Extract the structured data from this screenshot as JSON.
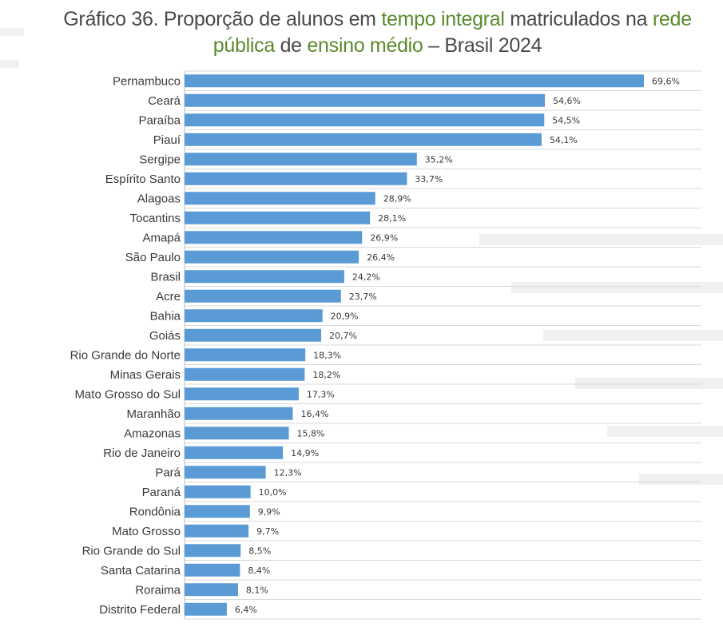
{
  "title": {
    "part1": "Gráfico 36. Proporção de alunos em ",
    "part2": "tempo integral",
    "part3": " matriculados na ",
    "part4": "rede",
    "part5": "pública",
    "part6": " de ",
    "part7": "ensino médio",
    "part8": " – Brasil 2024"
  },
  "colors": {
    "bar": "#5b9bd5",
    "highlight": "#5a8a2c",
    "text": "#4a4a4a"
  },
  "chart_data": {
    "type": "bar",
    "orientation": "horizontal",
    "title": "Gráfico 36. Proporção de alunos em tempo integral matriculados na rede pública de ensino médio – Brasil 2024",
    "xlabel": "",
    "ylabel": "",
    "xlim": [
      0,
      70
    ],
    "grid": true,
    "categories": [
      "Pernambuco",
      "Ceará",
      "Paraíba",
      "Piauí",
      "Sergipe",
      "Espírito Santo",
      "Alagoas",
      "Tocantins",
      "Amapá",
      "São Paulo",
      "Brasil",
      "Acre",
      "Bahia",
      "Goiás",
      "Rio Grande do Norte",
      "Minas Gerais",
      "Mato Grosso do Sul",
      "Maranhão",
      "Amazonas",
      "Rio de Janeiro",
      "Pará",
      "Paraná",
      "Rondônia",
      "Mato Grosso",
      "Rio Grande do Sul",
      "Santa Catarina",
      "Roraima",
      "Distrito Federal"
    ],
    "values": [
      69.6,
      54.6,
      54.5,
      54.1,
      35.2,
      33.7,
      28.9,
      28.1,
      26.9,
      26.4,
      24.2,
      23.7,
      20.9,
      20.7,
      18.3,
      18.2,
      17.3,
      16.4,
      15.8,
      14.9,
      12.3,
      10.0,
      9.9,
      9.7,
      8.5,
      8.4,
      8.1,
      6.4
    ],
    "value_labels": [
      "69,6%",
      "54,6%",
      "54,5%",
      "54,1%",
      "35,2%",
      "33,7%",
      "28,9%",
      "28,1%",
      "26,9%",
      "26,4%",
      "24,2%",
      "23,7%",
      "20,9%",
      "20,7%",
      "18,3%",
      "18,2%",
      "17,3%",
      "16,4%",
      "15,8%",
      "14,9%",
      "12,3%",
      "10,0%",
      "9,9%",
      "9,7%",
      "8,5%",
      "8,4%",
      "8,1%",
      "6,4%"
    ]
  }
}
